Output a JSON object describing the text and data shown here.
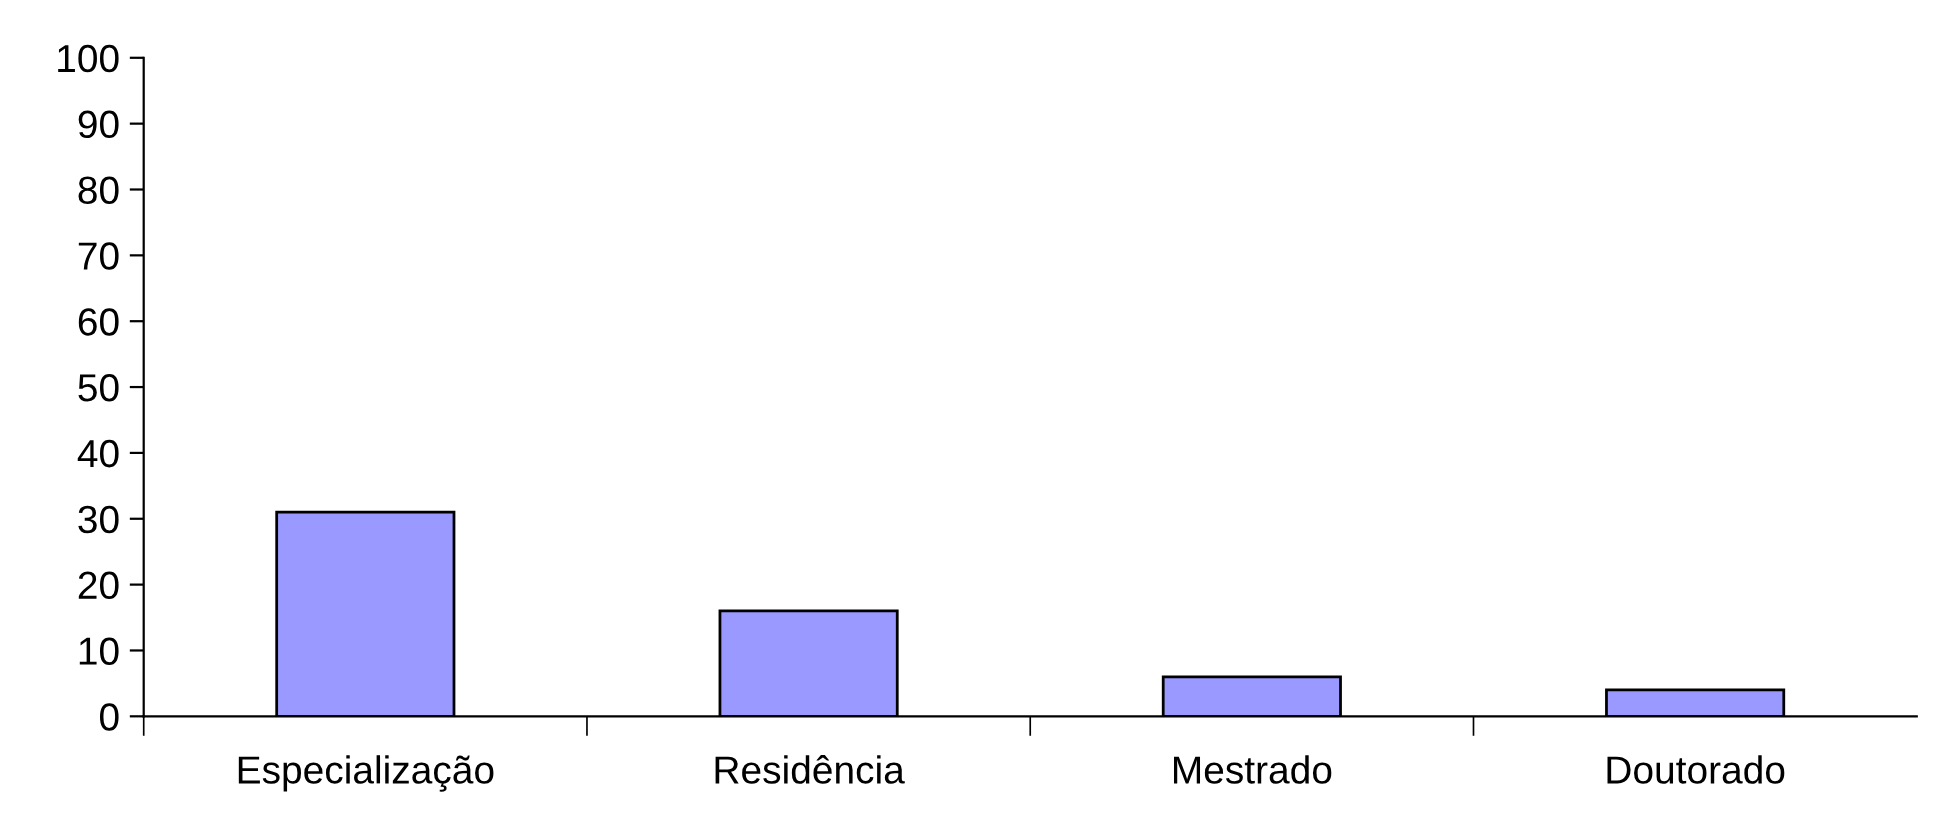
{
  "chart_data": {
    "type": "bar",
    "categories": [
      "Especialização",
      "Residência",
      "Mestrado",
      "Doutorado"
    ],
    "values": [
      31,
      16,
      6,
      4
    ],
    "color": "#9999ff",
    "ylim": [
      0,
      100
    ],
    "yticks": [
      0,
      10,
      20,
      30,
      40,
      50,
      60,
      70,
      80,
      90,
      100
    ],
    "grid": false
  }
}
